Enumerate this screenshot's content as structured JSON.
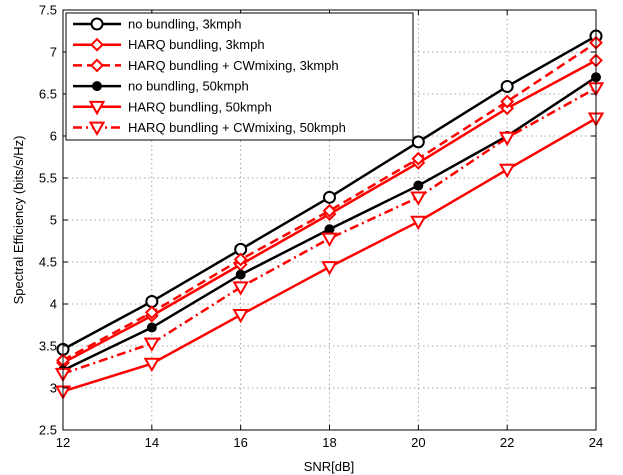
{
  "chart_data": {
    "type": "line",
    "title": "",
    "xlabel": "SNR[dB]",
    "ylabel": "Spectral Efficiency (bits/s/Hz)",
    "xlim": [
      12,
      24
    ],
    "ylim": [
      2.5,
      7.5
    ],
    "xticks": [
      12,
      14,
      16,
      18,
      20,
      22,
      24
    ],
    "yticks": [
      2.5,
      3,
      3.5,
      4,
      4.5,
      5,
      5.5,
      6,
      6.5,
      7,
      7.5
    ],
    "grid": true,
    "legend_position": "top-left",
    "x": [
      12,
      14,
      16,
      18,
      20,
      22,
      24
    ],
    "series": [
      {
        "name": "no bundling, 3kmph",
        "color": "#000000",
        "dash": "solid",
        "marker": "circle-open",
        "values": [
          3.46,
          4.03,
          4.65,
          5.27,
          5.93,
          6.59,
          7.19
        ]
      },
      {
        "name": "HARQ bundling, 3kmph",
        "color": "#ff0000",
        "dash": "solid",
        "marker": "diamond-open",
        "values": [
          3.3,
          3.86,
          4.47,
          5.07,
          5.68,
          6.33,
          6.9
        ]
      },
      {
        "name": "HARQ bundling + CWmixing, 3kmph",
        "color": "#ff0000",
        "dash": "dashed",
        "marker": "diamond-open",
        "values": [
          3.33,
          3.9,
          4.53,
          5.11,
          5.73,
          6.41,
          7.11
        ]
      },
      {
        "name": "no bundling, 50kmph",
        "color": "#000000",
        "dash": "solid",
        "marker": "dot",
        "values": [
          3.21,
          3.72,
          4.35,
          4.89,
          5.41,
          6.0,
          6.7
        ]
      },
      {
        "name": "HARQ bundling, 50kmph",
        "color": "#ff0000",
        "dash": "solid",
        "marker": "triangle-down",
        "values": [
          2.96,
          3.29,
          3.87,
          4.44,
          4.98,
          5.6,
          6.21
        ]
      },
      {
        "name": "HARQ bundling + CWmixing, 50kmph",
        "color": "#ff0000",
        "dash": "dashdot",
        "marker": "triangle-down",
        "values": [
          3.17,
          3.53,
          4.2,
          4.78,
          5.27,
          5.98,
          6.57
        ]
      }
    ]
  }
}
